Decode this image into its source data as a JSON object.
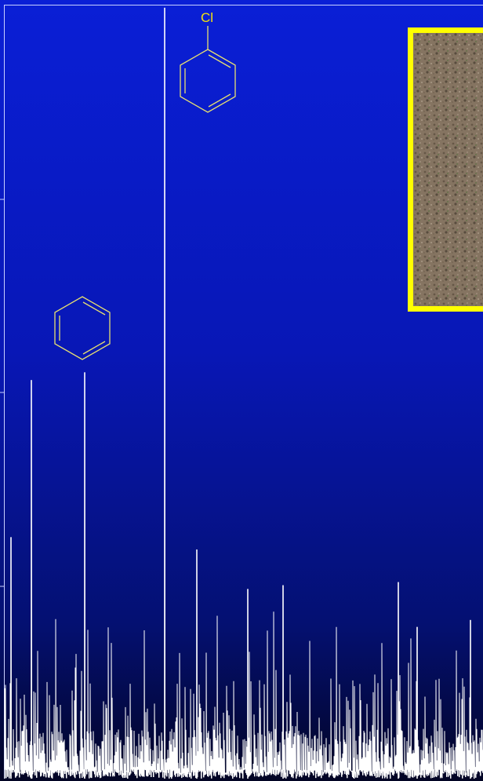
{
  "chart_data": {
    "type": "line",
    "title": "",
    "xlabel": "",
    "ylabel": "",
    "ylim": [
      0,
      100
    ],
    "grid": false,
    "legend": "none",
    "series": [
      {
        "points": [
          [
            14,
            31.2
          ],
          [
            40,
            51.5
          ],
          [
            108,
            52.5
          ],
          [
            210,
            99.6
          ],
          [
            251,
            29.6
          ],
          [
            316,
            24.5
          ],
          [
            361,
            25.0
          ],
          [
            508,
            25.4
          ],
          [
            532,
            19.6
          ],
          [
            600,
            20.5
          ]
        ]
      }
    ],
    "annotations": [
      {
        "structure": "benzene",
        "peak_x": 108
      },
      {
        "structure": "chlorobenzene",
        "substituent": "Cl",
        "peak_x": 210
      }
    ],
    "colors": {
      "background_top": "#0a1fd6",
      "background_bottom": "#020424",
      "trace": "#ffffff",
      "structure_stroke": "#e8e070",
      "inset_border": "#ffff00"
    }
  },
  "inset_photo": {
    "description_icon": "soil-photo-icon"
  }
}
